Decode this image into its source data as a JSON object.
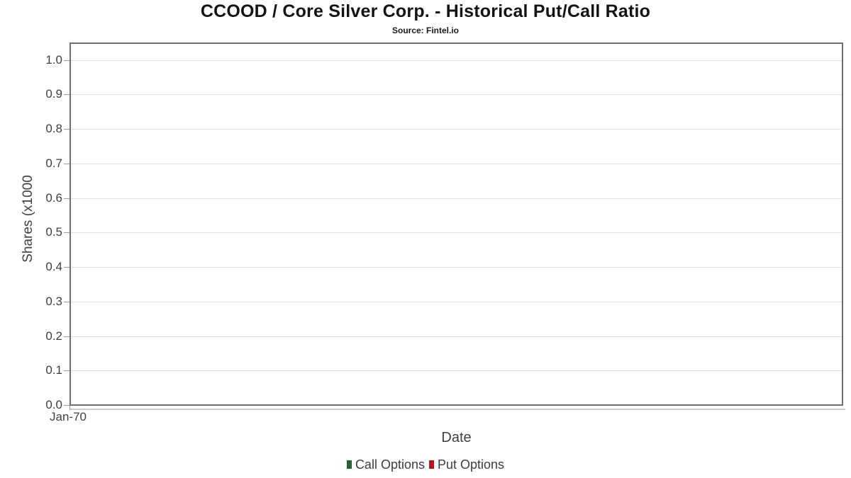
{
  "chart_data": {
    "type": "line",
    "title": "CCOOD / Core Silver Corp. - Historical Put/Call Ratio",
    "subtitle": "Source: Fintel.io",
    "xlabel": "Date",
    "ylabel": "Shares (x1000",
    "x_tick_labels": [
      "Jan-70"
    ],
    "y_tick_labels": [
      "0.0",
      "0.1",
      "0.2",
      "0.3",
      "0.4",
      "0.5",
      "0.6",
      "0.7",
      "0.8",
      "0.9",
      "1.0"
    ],
    "ylim": [
      0,
      1.05
    ],
    "grid": "horizontal-major-only",
    "legend_position": "bottom-center",
    "plot_is_empty": true,
    "series": [
      {
        "name": "Call Options",
        "color": "#27612c",
        "x": [],
        "values": []
      },
      {
        "name": "Put Options",
        "color": "#bd1515",
        "x": [],
        "values": []
      }
    ]
  },
  "colors": {
    "axis_border": "#6f6f6f",
    "gridline": "#e2e2e2",
    "tick": "#9a9a9a",
    "title_text": "#141414",
    "axis_text": "#3f3f3f",
    "background": "#ffffff"
  }
}
